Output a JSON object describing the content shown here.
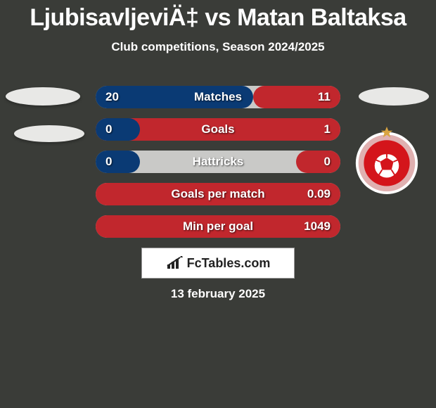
{
  "title": "LjubisavljeviÄ‡ vs Matan Baltaksa",
  "subtitle": "Club competitions, Season 2024/2025",
  "date": "13 february 2025",
  "site_logo_text": "FcTables.com",
  "colors": {
    "bg": "#3a3c38",
    "left_team": "#0a3a74",
    "right_team": "#c1272d",
    "bar_shell": "#c9c9c7"
  },
  "bars": [
    {
      "label": "Matches",
      "left_val": "20",
      "right_val": "11",
      "left_pct": 64.5,
      "right_pct": 35.5
    },
    {
      "label": "Goals",
      "left_val": "0",
      "right_val": "1",
      "left_pct": 18,
      "right_pct": 100
    },
    {
      "label": "Hattricks",
      "left_val": "0",
      "right_val": "0",
      "left_pct": 18,
      "right_pct": 18
    },
    {
      "label": "Goals per match",
      "left_val": "",
      "right_val": "0.09",
      "left_pct": 0,
      "right_pct": 100
    },
    {
      "label": "Min per goal",
      "left_val": "",
      "right_val": "1049",
      "left_pct": 0,
      "right_pct": 100
    }
  ],
  "right_logo": {
    "outer_fill": "#ffffff",
    "inner_fill": "#d4151b",
    "ring_fill": "#e0b0b0",
    "star_fill": "#d9a441",
    "ball_fill": "#ffffff",
    "ball_pentagon": "#d4151b"
  }
}
